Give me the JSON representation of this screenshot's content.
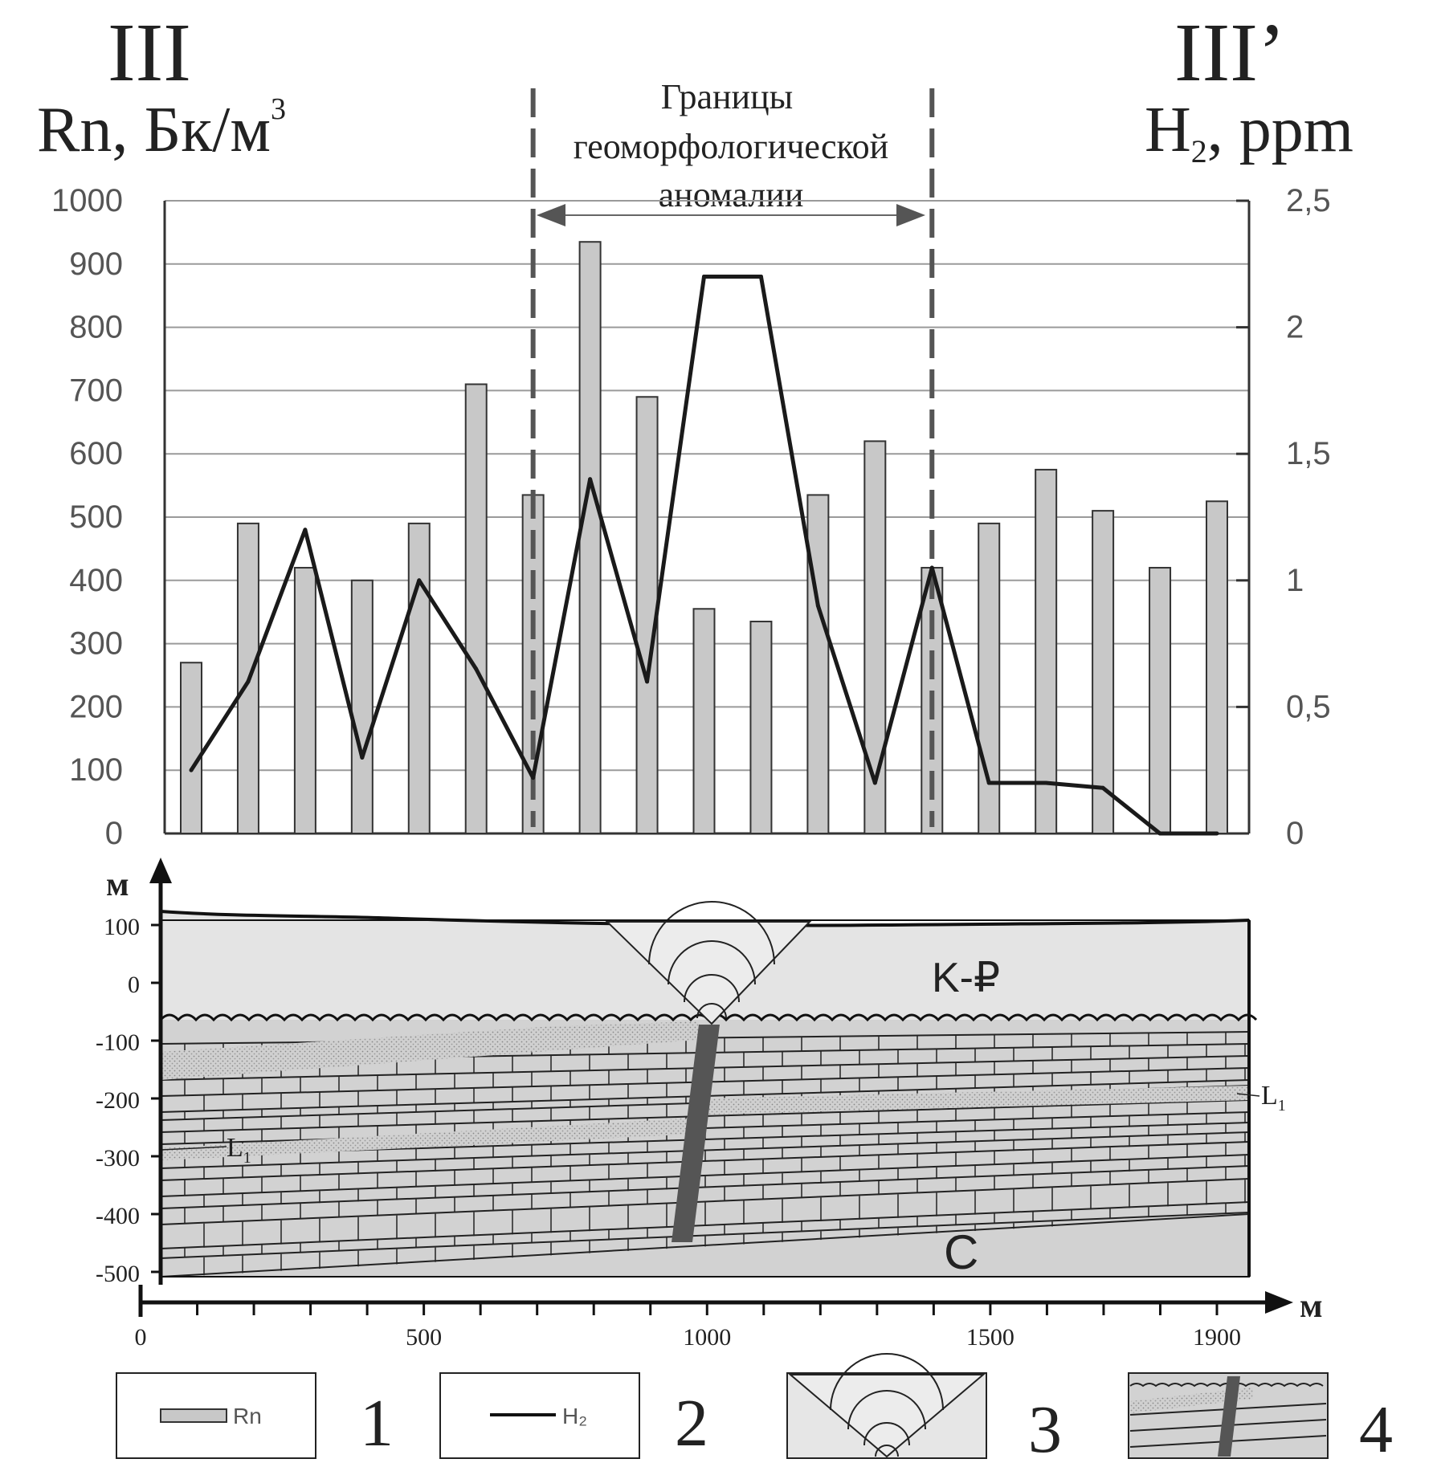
{
  "header": {
    "left_roman": "III",
    "right_roman": "III’",
    "left_unit": "Rn, Бк/м",
    "left_unit_sup": "3",
    "right_unit_main": "H",
    "right_unit_sub": "2",
    "right_unit_tail": ", ppm"
  },
  "annotation": {
    "line1": "Границы",
    "line2": "геоморфологической",
    "line3": "аномалии"
  },
  "chart_data": {
    "type": "bar",
    "x": [
      100,
      200,
      300,
      400,
      500,
      600,
      700,
      800,
      900,
      1000,
      1100,
      1200,
      1300,
      1400,
      1500,
      1600,
      1700,
      1800,
      1900
    ],
    "series": [
      {
        "name": "Rn",
        "type": "bar",
        "axis": "left",
        "values": [
          270,
          490,
          420,
          400,
          490,
          710,
          535,
          935,
          690,
          355,
          335,
          535,
          620,
          420,
          490,
          575,
          510,
          420,
          525
        ]
      },
      {
        "name": "H₂",
        "type": "line",
        "axis": "right",
        "x": [
          100,
          200,
          300,
          400,
          500,
          600,
          700,
          800,
          900,
          1000,
          1100,
          1200,
          1300,
          1400,
          1500,
          1600,
          1700,
          1800,
          1900
        ],
        "values": [
          0.25,
          0.6,
          1.2,
          0.3,
          1.0,
          0.65,
          0.22,
          1.4,
          0.6,
          2.2,
          2.2,
          0.9,
          0.2,
          1.05,
          0.2,
          0.2,
          0.18,
          0.0,
          0.0
        ]
      }
    ],
    "boundaries_x": [
      700,
      1400
    ],
    "y_left": {
      "ticks": [
        "0",
        "100",
        "200",
        "300",
        "400",
        "500",
        "600",
        "700",
        "800",
        "900",
        "1000"
      ],
      "range": [
        0,
        1000
      ]
    },
    "y_right": {
      "ticks": [
        "0",
        "0,5",
        "1",
        "1,5",
        "2",
        "2,5"
      ],
      "range": [
        0,
        2.5
      ]
    },
    "grid": true,
    "colors": {
      "bar": "#c8c8c8",
      "bar_stroke": "#333333",
      "line": "#1a1a1a",
      "boundary": "#555555",
      "grid": "#9a9a9a"
    }
  },
  "section": {
    "axis_unit_y": "м",
    "axis_unit_x": "м",
    "y_ticks": [
      "100",
      "0",
      "-100",
      "-200",
      "-300",
      "-400",
      "-500"
    ],
    "x_ticks": [
      "0",
      "500",
      "1000",
      "1500",
      "1900"
    ],
    "label_top_unit": "K-₽",
    "label_bottom_unit": "C",
    "label_layer_right": "L",
    "label_layer_right_sub": "1",
    "label_layer_left": "L",
    "label_layer_left_sub": "1",
    "colors": {
      "sediment": "#e2e2e2",
      "strata": "#cfcfcf",
      "sand": "#bdbdbd",
      "fault": "#555555"
    }
  },
  "legend": [
    {
      "number": "1",
      "label": "Rn"
    },
    {
      "number": "2",
      "label": "H₂"
    },
    {
      "number": "3"
    },
    {
      "number": "4"
    }
  ]
}
